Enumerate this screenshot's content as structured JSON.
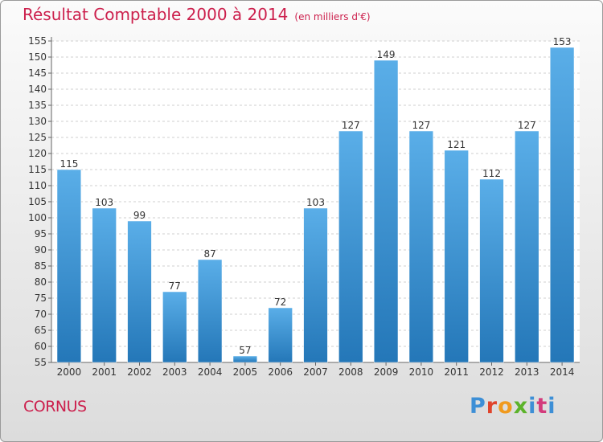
{
  "header": {
    "title": "Résultat Comptable 2000 à 2014",
    "subtitle": "(en milliers d'€)"
  },
  "footer": {
    "place": "CORNUS",
    "brand": "Proxiti"
  },
  "colors": {
    "title": "#cc1f4c",
    "bar_light": "#5aaee8",
    "bar_dark": "#2477b8"
  },
  "chart_data": {
    "type": "bar",
    "title": "Résultat Comptable 2000 à 2014",
    "subtitle": "(en milliers d'€)",
    "xlabel": "",
    "ylabel": "",
    "categories": [
      "2000",
      "2001",
      "2002",
      "2003",
      "2004",
      "2005",
      "2006",
      "2007",
      "2008",
      "2009",
      "2010",
      "2011",
      "2012",
      "2013",
      "2014"
    ],
    "values": [
      115,
      103,
      99,
      77,
      87,
      57,
      72,
      103,
      127,
      149,
      127,
      121,
      112,
      127,
      153
    ],
    "ylim": [
      55,
      155
    ],
    "yticks": [
      55,
      60,
      65,
      70,
      75,
      80,
      85,
      90,
      95,
      100,
      105,
      110,
      115,
      120,
      125,
      130,
      135,
      140,
      145,
      150,
      155
    ],
    "grid": true,
    "data_labels": true
  }
}
